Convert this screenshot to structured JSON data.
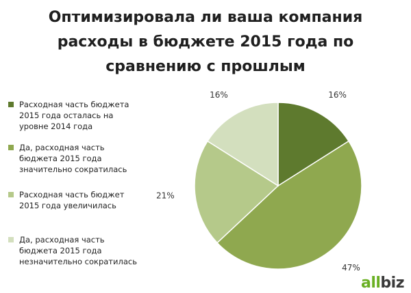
{
  "title_lines": [
    "Оптимизировала ли ваша компания",
    "расходы в бюджете 2015 года по",
    "сравнению с прошлым"
  ],
  "brand": {
    "part1": "all",
    "part2": "biz"
  },
  "colors": {
    "brand_green": "#6ab023",
    "brand_dark": "#3a3a3a"
  },
  "chart_data": {
    "type": "pie",
    "slices": [
      {
        "label": "Расходная часть бюджета\n2015 года осталась на\nуровне 2014 года",
        "value": 16,
        "value_label": "16%",
        "color": "#5e7a2e"
      },
      {
        "label": "Да, расходная часть\nбюджета 2015 года\nзначительно сократилась",
        "value": 47,
        "value_label": "47%",
        "color": "#8fa84f"
      },
      {
        "label": "Расходная часть бюджет\n2015 года увеличилась",
        "value": 21,
        "value_label": "21%",
        "color": "#b5c98a"
      },
      {
        "label": "Да, расходная часть\nбюджета 2015 года\nнезначительно сократилась",
        "value": 16,
        "value_label": "16%",
        "color": "#d3dfbe"
      }
    ],
    "legend_position": "left"
  }
}
